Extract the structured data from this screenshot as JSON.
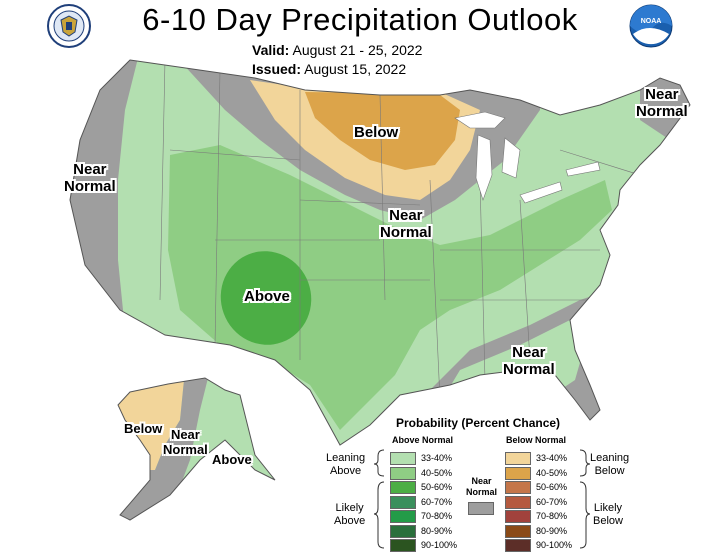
{
  "title": "6-10 Day Precipitation Outlook",
  "valid_label": "Valid:",
  "valid_dates": "August 21 - 25, 2022",
  "issued_label": "Issued:",
  "issued_date": "August 15, 2022",
  "map_labels": {
    "below": "Below",
    "above": "Above",
    "near": "Near",
    "normal": "Normal"
  },
  "alaska_labels": {
    "below": "Below",
    "above": "Above",
    "near": "Near",
    "normal": "Normal"
  },
  "legend": {
    "title": "Probability (Percent Chance)",
    "above_header": "Above Normal",
    "below_header": "Below Normal",
    "above_rows": [
      "33-40%",
      "40-50%",
      "50-60%",
      "60-70%",
      "70-80%",
      "80-90%",
      "90-100%"
    ],
    "below_rows": [
      "33-40%",
      "40-50%",
      "50-60%",
      "60-70%",
      "70-80%",
      "80-90%",
      "90-100%"
    ],
    "above_colors": [
      "#b3dfb0",
      "#8fcd84",
      "#4cae45",
      "#3a8f5c",
      "#239b48",
      "#2a6f3c",
      "#2b5420"
    ],
    "below_colors": [
      "#f2d59a",
      "#dca44a",
      "#c4764a",
      "#b55a3f",
      "#a1423c",
      "#8a4a17",
      "#5c2e28"
    ],
    "leaning_above": [
      "Leaning",
      "Above"
    ],
    "likely_above": [
      "Likely",
      "Above"
    ],
    "leaning_below": [
      "Leaning",
      "Below"
    ],
    "likely_below": [
      "Likely",
      "Below"
    ],
    "near_normal": [
      "Near",
      "Normal"
    ],
    "near_color": "#9e9e9e"
  },
  "logos": {
    "left": "department-of-commerce-seal",
    "right": "noaa-logo"
  }
}
